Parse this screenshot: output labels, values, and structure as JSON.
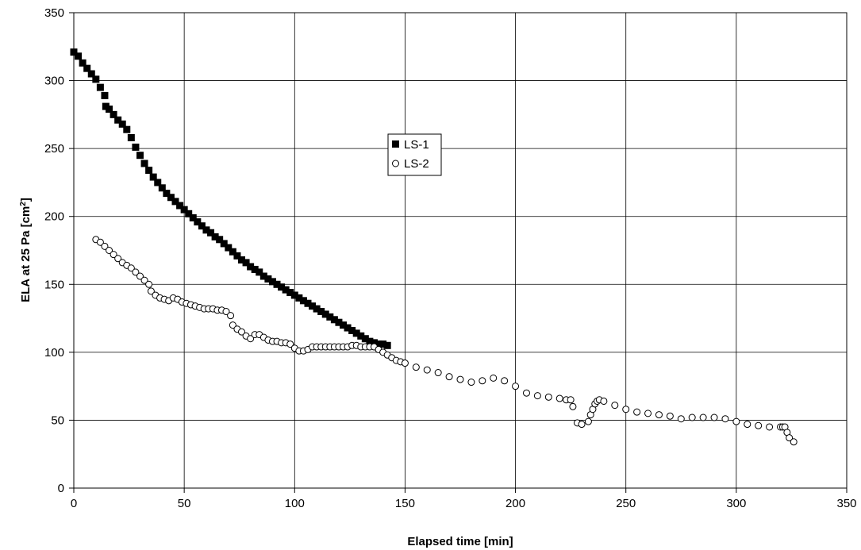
{
  "chart_data": {
    "type": "scatter",
    "title": "",
    "xlabel": "Elapsed time [min]",
    "ylabel_parts": [
      "ELA at 25 Pa [cm",
      "2",
      "]"
    ],
    "xlim": [
      0,
      350
    ],
    "ylim": [
      0,
      350
    ],
    "xticks": [
      0,
      50,
      100,
      150,
      200,
      250,
      300,
      350
    ],
    "yticks": [
      0,
      50,
      100,
      150,
      200,
      250,
      300,
      350
    ],
    "xtick_labels": [
      "0",
      "50",
      "100",
      "150",
      "200",
      "250",
      "300",
      "350"
    ],
    "ytick_labels": [
      "0",
      "50",
      "100",
      "150",
      "200",
      "250",
      "300",
      "350"
    ],
    "grid": true,
    "legend_position": "center",
    "series": [
      {
        "name": "LS-1",
        "marker": "filled-square",
        "color": "#000000",
        "x": [
          0,
          2,
          4,
          6,
          8,
          10,
          12,
          14,
          14.5,
          16,
          18,
          20,
          22,
          24,
          26,
          28,
          30,
          32,
          34,
          36,
          38,
          40,
          42,
          44,
          46,
          48,
          50,
          52,
          54,
          56,
          58,
          60,
          62,
          64,
          66,
          68,
          70,
          72,
          74,
          76,
          78,
          80,
          82,
          84,
          86,
          88,
          90,
          92,
          94,
          96,
          98,
          100,
          102,
          104,
          106,
          108,
          110,
          112,
          114,
          116,
          118,
          120,
          122,
          124,
          126,
          128,
          130,
          132,
          134,
          136,
          138,
          140,
          142
        ],
        "y": [
          321,
          318,
          313,
          309,
          305,
          301,
          295,
          289,
          281,
          279,
          275,
          271,
          268,
          264,
          258,
          251,
          245,
          239,
          234,
          229,
          225,
          221,
          217,
          214,
          211,
          208,
          205,
          202,
          199,
          196,
          193,
          190,
          188,
          185,
          183,
          180,
          177,
          174,
          171,
          168,
          166,
          163,
          161,
          159,
          156,
          154,
          152,
          150,
          148,
          146,
          144,
          142,
          140,
          138,
          136,
          134,
          132,
          130,
          128,
          126,
          124,
          122,
          120,
          118,
          116,
          114,
          112,
          110,
          108,
          107,
          106,
          106,
          105
        ]
      },
      {
        "name": "LS-2",
        "marker": "open-circle",
        "color": "#000000",
        "x": [
          10,
          12,
          14,
          16,
          18,
          20,
          22,
          24,
          26,
          28,
          30,
          32,
          34,
          35,
          37,
          39,
          41,
          43,
          45,
          47,
          49,
          51,
          53,
          55,
          57,
          59,
          61,
          63,
          65,
          67,
          69,
          71,
          72,
          74,
          76,
          78,
          80,
          82,
          84,
          86,
          88,
          90,
          92,
          94,
          96,
          98,
          100,
          102,
          104,
          106,
          108,
          110,
          112,
          114,
          116,
          118,
          120,
          122,
          124,
          126,
          128,
          130,
          132,
          134,
          136,
          138,
          140,
          142,
          144,
          146,
          148,
          150,
          155,
          160,
          165,
          170,
          175,
          180,
          185,
          190,
          195,
          200,
          205,
          210,
          215,
          220,
          223,
          225,
          226,
          228,
          230,
          233,
          234,
          235,
          236,
          237,
          238,
          240,
          245,
          250,
          255,
          260,
          265,
          270,
          275,
          280,
          285,
          290,
          295,
          300,
          305,
          310,
          315,
          320,
          321,
          322,
          323,
          324,
          326
        ],
        "y": [
          183,
          181,
          178,
          175,
          172,
          169,
          166,
          164,
          162,
          159,
          156,
          153,
          150,
          145,
          142,
          140,
          139,
          138,
          140,
          139,
          137,
          136,
          135,
          134,
          133,
          132,
          132,
          132,
          131,
          131,
          130,
          127,
          120,
          117,
          115,
          112,
          110,
          113,
          113,
          111,
          109,
          108,
          108,
          107,
          107,
          106,
          103,
          101,
          101,
          102,
          104,
          104,
          104,
          104,
          104,
          104,
          104,
          104,
          104,
          105,
          105,
          104,
          104,
          104,
          104,
          102,
          100,
          98,
          96,
          94,
          93,
          92,
          89,
          87,
          85,
          82,
          80,
          78,
          79,
          81,
          79,
          75,
          70,
          68,
          67,
          66,
          65,
          65,
          60,
          48,
          47,
          49,
          54,
          58,
          62,
          64,
          65,
          64,
          61,
          58,
          56,
          55,
          54,
          53,
          51,
          52,
          52,
          52,
          51,
          49,
          47,
          46,
          45,
          45,
          45,
          45,
          41,
          37,
          34
        ]
      }
    ]
  },
  "legend": {
    "items": [
      {
        "label": "LS-1",
        "marker": "filled-square"
      },
      {
        "label": "LS-2",
        "marker": "open-circle"
      }
    ]
  }
}
